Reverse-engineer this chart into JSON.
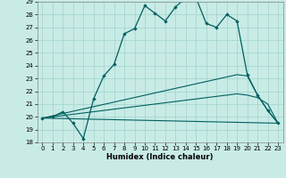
{
  "xlabel": "Humidex (Indice chaleur)",
  "xlim": [
    -0.5,
    23.5
  ],
  "ylim": [
    18,
    29
  ],
  "yticks": [
    18,
    19,
    20,
    21,
    22,
    23,
    24,
    25,
    26,
    27,
    28,
    29
  ],
  "xticks": [
    0,
    1,
    2,
    3,
    4,
    5,
    6,
    7,
    8,
    9,
    10,
    11,
    12,
    13,
    14,
    15,
    16,
    17,
    18,
    19,
    20,
    21,
    22,
    23
  ],
  "background_color": "#c8ebe6",
  "grid_color": "#a0d4cc",
  "line_color": "#005f5f",
  "line1_x": [
    0,
    1,
    2,
    3,
    4,
    5,
    6,
    7,
    8,
    9,
    10,
    11,
    12,
    13,
    14,
    15,
    16,
    17,
    18,
    19,
    20,
    21,
    22,
    23
  ],
  "line1_y": [
    19.9,
    20.0,
    20.4,
    19.5,
    18.3,
    21.4,
    23.2,
    24.1,
    26.5,
    26.9,
    28.7,
    28.1,
    27.5,
    28.6,
    29.3,
    29.3,
    27.3,
    27.0,
    28.0,
    27.5,
    23.3,
    21.7,
    20.5,
    19.5
  ],
  "line2_x": [
    0,
    23
  ],
  "line2_y": [
    19.9,
    19.5
  ],
  "line3_x": [
    0,
    19,
    20,
    21,
    22,
    23
  ],
  "line3_y": [
    19.9,
    21.8,
    21.7,
    21.5,
    21.0,
    19.5
  ],
  "line4_x": [
    0,
    19,
    20,
    21,
    22,
    23
  ],
  "line4_y": [
    19.9,
    23.3,
    23.2,
    21.7,
    20.5,
    19.5
  ]
}
